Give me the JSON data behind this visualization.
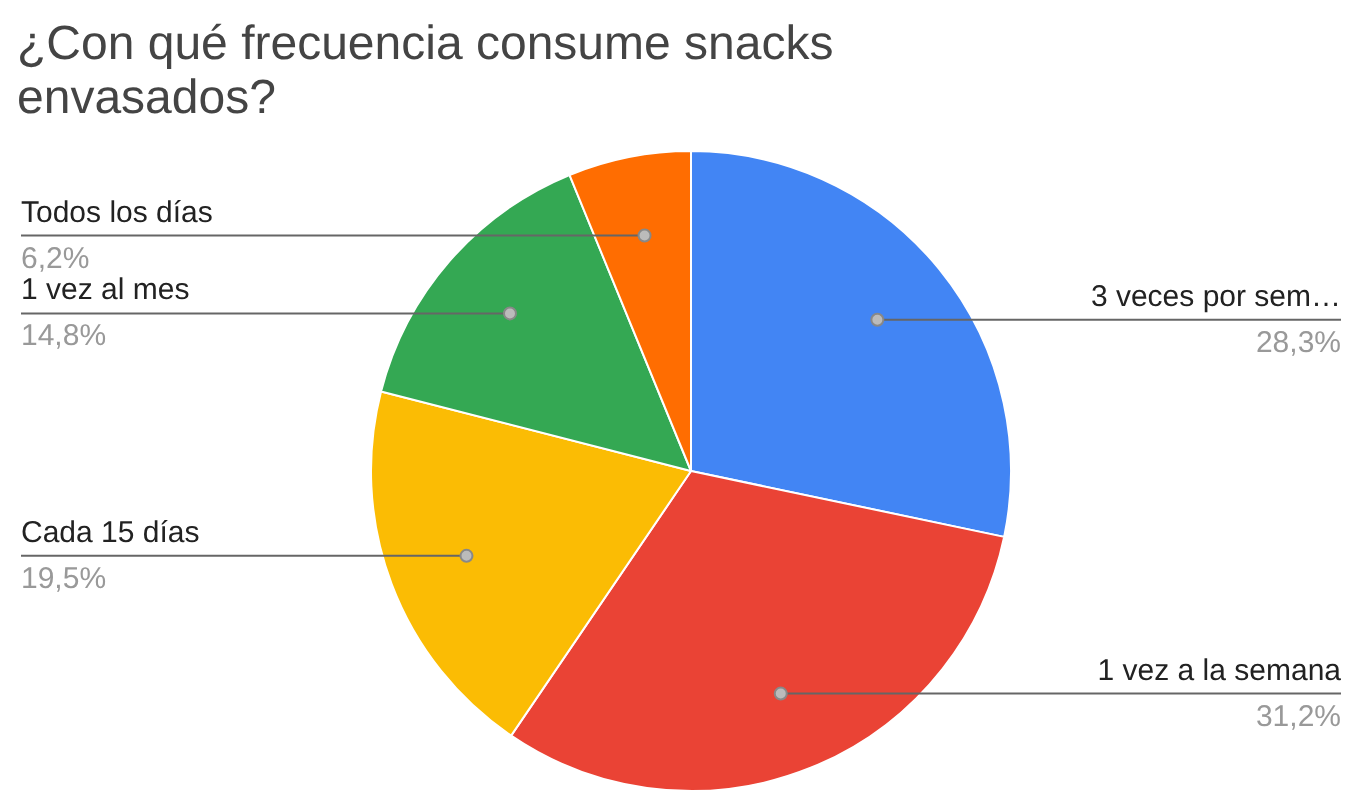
{
  "chart_data": {
    "type": "pie",
    "title": "¿Con qué frecuencia consume snacks envasados?",
    "categories": [
      "3 veces por sem…",
      "1 vez a la semana",
      "Cada 15 días",
      "1 vez al mes",
      "Todos los días"
    ],
    "values": [
      28.3,
      31.2,
      19.5,
      14.8,
      6.2
    ],
    "colors": [
      "#4285f4",
      "#ea4335",
      "#fbbc04",
      "#34a853",
      "#ff6d01"
    ],
    "value_labels": [
      "28,3%",
      "31,2%",
      "19,5%",
      "14,8%",
      "6,2%"
    ]
  }
}
